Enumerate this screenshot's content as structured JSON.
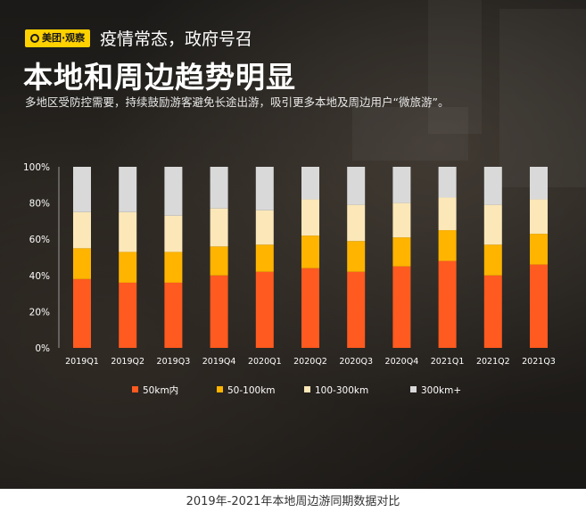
{
  "header": {
    "logo_text": "美团·观察",
    "subtitle": "疫情常态，政府号召",
    "title": "本地和周边趋势明显",
    "description": "多地区受防控需要，持续鼓励游客避免长途出游，吸引更多本地及周边用户“微旅游”。"
  },
  "caption": "2019年-2021年本地周边游同期数据对比",
  "chart_data": {
    "type": "bar",
    "stacked": true,
    "categories": [
      "2019Q1",
      "2019Q2",
      "2019Q3",
      "2019Q4",
      "2020Q1",
      "2020Q2",
      "2020Q3",
      "2020Q4",
      "2021Q1",
      "2021Q2",
      "2021Q3"
    ],
    "y_tick_labels": [
      "0%",
      "20%",
      "40%",
      "60%",
      "80%",
      "100%"
    ],
    "ylim": [
      0,
      100
    ],
    "series": [
      {
        "name": "50km内",
        "color": "#ff5a1f",
        "values": [
          38,
          36,
          36,
          40,
          42,
          44,
          42,
          45,
          48,
          40,
          46
        ]
      },
      {
        "name": "50-100km",
        "color": "#ffb400",
        "values": [
          17,
          17,
          17,
          16,
          15,
          18,
          17,
          16,
          17,
          17,
          17
        ]
      },
      {
        "name": "100-300km",
        "color": "#fbe7b8",
        "values": [
          20,
          22,
          20,
          21,
          19,
          20,
          20,
          19,
          18,
          22,
          19
        ]
      },
      {
        "name": "300km+",
        "color": "#d9d9d9",
        "values": [
          25,
          25,
          27,
          23,
          24,
          18,
          21,
          20,
          17,
          21,
          18
        ]
      }
    ],
    "legend_position": "bottom",
    "grid": false
  }
}
